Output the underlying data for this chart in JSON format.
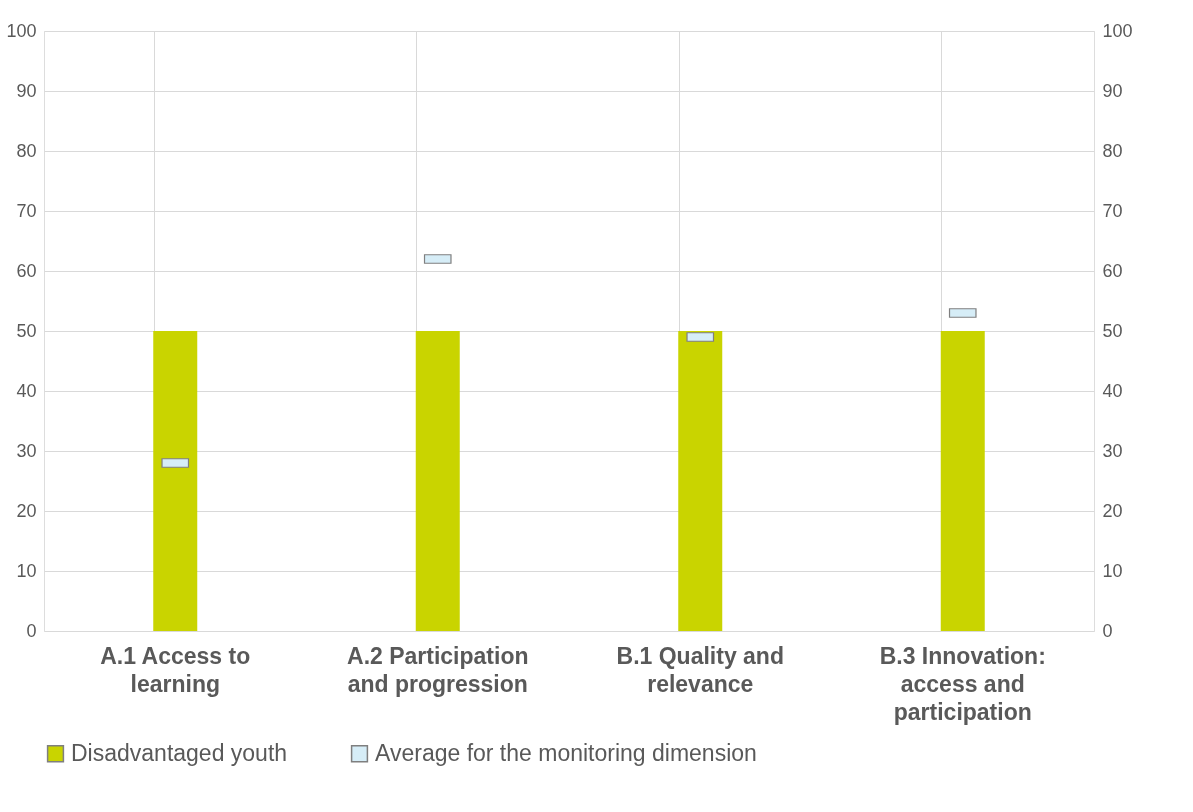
{
  "chart_data": {
    "type": "bar",
    "categories": [
      "A.1 Access to learning",
      "A.2 Participation and progression",
      "B.1 Quality and relevance",
      "B.3 Innovation: access and participation"
    ],
    "series": [
      {
        "name": "Disadvantaged youth",
        "color": "#c9d400",
        "values": [
          50,
          50,
          50,
          50
        ]
      },
      {
        "name": "Average for the monitoring dimension",
        "type": "scatter",
        "marker": "square",
        "color": "#d6edf7",
        "values": [
          28,
          62,
          49,
          53
        ]
      }
    ],
    "ylim": [
      0,
      100
    ],
    "yticks": [
      0,
      10,
      20,
      30,
      40,
      50,
      60,
      70,
      80,
      90,
      100
    ],
    "y2lim": [
      0,
      100
    ],
    "y2ticks": [
      0,
      10,
      20,
      30,
      40,
      50,
      60,
      70,
      80,
      90,
      100
    ],
    "grid": true,
    "legend": "bottom"
  }
}
